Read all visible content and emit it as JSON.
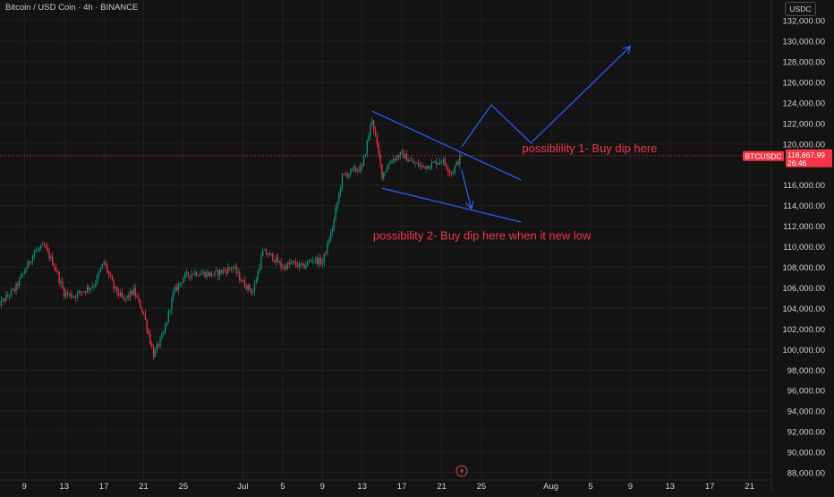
{
  "header": {
    "symbol_title": "Bitcoin / USD Coin · 4h · BINANCE"
  },
  "price_axis": {
    "unit_label": "USDC"
  },
  "chart_data": {
    "type": "candlestick",
    "symbol": "BTCUSDC",
    "interval": "4h",
    "exchange": "BINANCE",
    "last_price": 118867.99,
    "last_price_label": "118,867.99",
    "countdown_label": "26:46",
    "ylim": [
      87600,
      132200
    ],
    "grid": true,
    "colors": {
      "up": "#089981",
      "down": "#f23645",
      "annotation_line": "#2962ff",
      "annotation_text": "#f23645",
      "price_line": "#f23645"
    },
    "y_ticks": [
      {
        "value": 88000,
        "label": "88,000.00"
      },
      {
        "value": 90000,
        "label": "90,000.00"
      },
      {
        "value": 92000,
        "label": "92,000.00"
      },
      {
        "value": 94000,
        "label": "94,000.00"
      },
      {
        "value": 96000,
        "label": "96,000.00"
      },
      {
        "value": 98000,
        "label": "98,000.00"
      },
      {
        "value": 100000,
        "label": "100,000.00"
      },
      {
        "value": 102000,
        "label": "102,000.00"
      },
      {
        "value": 104000,
        "label": "104,000.00"
      },
      {
        "value": 106000,
        "label": "106,000.00"
      },
      {
        "value": 108000,
        "label": "108,000.00"
      },
      {
        "value": 110000,
        "label": "110,000.00"
      },
      {
        "value": 112000,
        "label": "112,000.00"
      },
      {
        "value": 114000,
        "label": "114,000.00"
      },
      {
        "value": 116000,
        "label": "116,000.00"
      },
      {
        "value": 120000,
        "label": "120,000.00"
      },
      {
        "value": 122000,
        "label": "122,000.00"
      },
      {
        "value": 124000,
        "label": "124,000.00"
      },
      {
        "value": 126000,
        "label": "126,000.00"
      },
      {
        "value": 128000,
        "label": "128,000.00"
      },
      {
        "value": 130000,
        "label": "130,000.00"
      },
      {
        "value": 132000,
        "label": "132,000.00"
      }
    ],
    "x_ticks": [
      {
        "date": "2025-06-09",
        "label": "9"
      },
      {
        "date": "2025-06-13",
        "label": "13"
      },
      {
        "date": "2025-06-17",
        "label": "17"
      },
      {
        "date": "2025-06-21",
        "label": "21"
      },
      {
        "date": "2025-06-25",
        "label": "25"
      },
      {
        "date": "2025-07-01",
        "label": "Jul"
      },
      {
        "date": "2025-07-05",
        "label": "5"
      },
      {
        "date": "2025-07-09",
        "label": "9"
      },
      {
        "date": "2025-07-13",
        "label": "13"
      },
      {
        "date": "2025-07-17",
        "label": "17"
      },
      {
        "date": "2025-07-21",
        "label": "21"
      },
      {
        "date": "2025-07-25",
        "label": "25"
      },
      {
        "date": "2025-08-01",
        "label": "Aug"
      },
      {
        "date": "2025-08-05",
        "label": "5"
      },
      {
        "date": "2025-08-09",
        "label": "9"
      },
      {
        "date": "2025-08-13",
        "label": "13"
      },
      {
        "date": "2025-08-17",
        "label": "17"
      },
      {
        "date": "2025-08-21",
        "label": "21"
      }
    ],
    "price_path": [
      {
        "date": "2025-06-06",
        "close": 104000
      },
      {
        "date": "2025-06-08",
        "close": 105800
      },
      {
        "date": "2025-06-10",
        "close": 109500
      },
      {
        "date": "2025-06-11",
        "close": 110000
      },
      {
        "date": "2025-06-12",
        "close": 108200
      },
      {
        "date": "2025-06-13",
        "close": 105500
      },
      {
        "date": "2025-06-14",
        "close": 105200
      },
      {
        "date": "2025-06-16",
        "close": 106300
      },
      {
        "date": "2025-06-17",
        "close": 108500
      },
      {
        "date": "2025-06-18",
        "close": 106000
      },
      {
        "date": "2025-06-19",
        "close": 104800
      },
      {
        "date": "2025-06-20",
        "close": 105700
      },
      {
        "date": "2025-06-21",
        "close": 103500
      },
      {
        "date": "2025-06-22",
        "close": 99500
      },
      {
        "date": "2025-06-23",
        "close": 101500
      },
      {
        "date": "2025-06-24",
        "close": 105500
      },
      {
        "date": "2025-06-25",
        "close": 107000
      },
      {
        "date": "2025-06-26",
        "close": 107500
      },
      {
        "date": "2025-06-28",
        "close": 107300
      },
      {
        "date": "2025-06-30",
        "close": 108000
      },
      {
        "date": "2025-07-01",
        "close": 106500
      },
      {
        "date": "2025-07-02",
        "close": 105600
      },
      {
        "date": "2025-07-03",
        "close": 109500
      },
      {
        "date": "2025-07-04",
        "close": 109000
      },
      {
        "date": "2025-07-05",
        "close": 108000
      },
      {
        "date": "2025-07-06",
        "close": 108400
      },
      {
        "date": "2025-07-07",
        "close": 108000
      },
      {
        "date": "2025-07-08",
        "close": 108800
      },
      {
        "date": "2025-07-09",
        "close": 108500
      },
      {
        "date": "2025-07-10",
        "close": 111800
      },
      {
        "date": "2025-07-11",
        "close": 116800
      },
      {
        "date": "2025-07-12",
        "close": 117400
      },
      {
        "date": "2025-07-13",
        "close": 117700
      },
      {
        "date": "2025-07-14",
        "close": 122500
      },
      {
        "date": "2025-07-15",
        "close": 117000
      },
      {
        "date": "2025-07-16",
        "close": 118500
      },
      {
        "date": "2025-07-17",
        "close": 119000
      },
      {
        "date": "2025-07-18",
        "close": 118200
      },
      {
        "date": "2025-07-19",
        "close": 117800
      },
      {
        "date": "2025-07-20",
        "close": 118000
      },
      {
        "date": "2025-07-21",
        "close": 118500
      },
      {
        "date": "2025-07-22",
        "close": 117200
      },
      {
        "date": "2025-07-23",
        "close": 118868
      }
    ],
    "annotations": [
      {
        "name": "possibility-1-path",
        "kind": "arrow-path",
        "points": [
          [
            "2025-07-23",
            119700
          ],
          [
            "2025-07-26",
            123800
          ],
          [
            "2025-07-30",
            120100
          ],
          [
            "2025-08-09",
            129500
          ]
        ]
      },
      {
        "name": "possibility-2-path",
        "kind": "arrow-path",
        "points": [
          [
            "2025-07-23",
            117500
          ],
          [
            "2025-07-24",
            113700
          ]
        ]
      },
      {
        "name": "wedge-upper-line",
        "kind": "trendline",
        "points": [
          [
            "2025-07-14",
            123200
          ],
          [
            "2025-07-29",
            116500
          ]
        ]
      },
      {
        "name": "wedge-lower-line",
        "kind": "trendline",
        "points": [
          [
            "2025-07-15",
            115700
          ],
          [
            "2025-07-29",
            112400
          ]
        ]
      }
    ],
    "text_annotations": [
      {
        "text": "possiblility 1- Buy dip here",
        "date": "2025-07-30",
        "price": 119200
      },
      {
        "text": "possibility 2- Buy dip here when it new low",
        "date": "2025-07-15",
        "price": 110700
      }
    ]
  }
}
